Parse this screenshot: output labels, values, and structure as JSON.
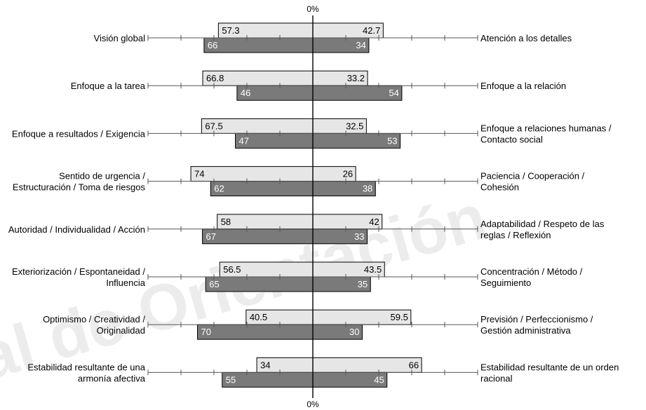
{
  "chart_data": {
    "type": "bar",
    "top_label": "0%",
    "bottom_label": "0%",
    "watermark": "al de Orientación",
    "series": [
      {
        "values_left": [
          57.3,
          66.8,
          67.5,
          74,
          58,
          56.5,
          40.5,
          34
        ],
        "values_right": [
          42.7,
          33.2,
          32.5,
          26,
          42,
          43.5,
          59.5,
          66
        ]
      },
      {
        "values_left": [
          66,
          46,
          47,
          62,
          67,
          65,
          70,
          55
        ],
        "values_right": [
          34,
          54,
          53,
          38,
          33,
          35,
          30,
          45
        ]
      }
    ],
    "left_labels": [
      [
        "Visión global"
      ],
      [
        "Enfoque a la tarea"
      ],
      [
        "Enfoque a resultados / Exigencia"
      ],
      [
        "Sentido de urgencia /",
        "Estructuración / Toma de riesgos"
      ],
      [
        "Autoridad / Individualidad / Acción"
      ],
      [
        "Exteriorización / Espontaneidad /",
        "Influencia"
      ],
      [
        "Optimismo / Creatividad /",
        "Originalidad"
      ],
      [
        "Estabilidad resultante de una",
        "armonía afectiva"
      ]
    ],
    "right_labels": [
      [
        "Atención a los detalles"
      ],
      [
        "Enfoque a la relación"
      ],
      [
        "Enfoque a relaciones humanas /",
        "Contacto social"
      ],
      [
        "Paciencia / Cooperación /",
        "Cohesión"
      ],
      [
        "Adaptabilidad / Respeto de las",
        "reglas / Reflexión"
      ],
      [
        "Concentración / Método /",
        "Seguimiento"
      ],
      [
        "Previsión / Perfeccionismo /",
        "Gestión administrativa"
      ],
      [
        "Estabilidad resultante de un orden",
        "racional"
      ]
    ],
    "colors": {
      "light": "#e6e6e6",
      "dark": "#7a7a7a",
      "axis": "#000000",
      "ticks": "#555555",
      "watermark": "#ececec"
    }
  }
}
